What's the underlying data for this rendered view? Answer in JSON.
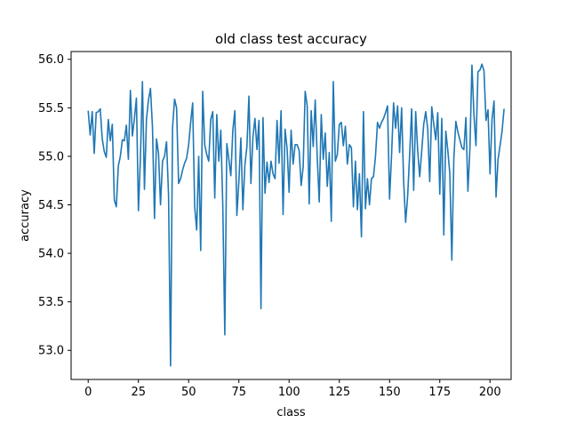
{
  "chart_data": {
    "type": "line",
    "title": "old class test accuracy",
    "xlabel": "class",
    "ylabel": "accuracy",
    "xlim": [
      -8.5,
      210.5
    ],
    "ylim": [
      52.7,
      56.08
    ],
    "grid": false,
    "line_color": "#1f77b4",
    "xticks": [
      0,
      25,
      50,
      75,
      100,
      125,
      150,
      175,
      200
    ],
    "xtick_labels": [
      "0",
      "25",
      "50",
      "75",
      "100",
      "125",
      "150",
      "175",
      "200"
    ],
    "yticks": [
      53.0,
      53.5,
      54.0,
      54.5,
      55.0,
      55.5,
      56.0
    ],
    "ytick_labels": [
      "53.0",
      "53.5",
      "54.0",
      "54.5",
      "55.0",
      "55.5",
      "56.0"
    ],
    "series": [
      {
        "values": [
          55.47,
          55.22,
          55.46,
          55.03,
          55.45,
          55.46,
          55.49,
          55.18,
          55.05,
          54.99,
          55.38,
          55.16,
          55.33,
          54.55,
          54.48,
          54.9,
          55.0,
          55.17,
          55.16,
          55.32,
          54.97,
          55.68,
          55.21,
          55.39,
          55.6,
          54.44,
          54.98,
          55.77,
          54.66,
          55.38,
          55.58,
          55.7,
          55.3,
          54.36,
          55.18,
          55.03,
          54.5,
          54.95,
          55.0,
          55.15,
          54.6,
          52.84,
          55.3,
          55.59,
          55.5,
          54.72,
          54.77,
          54.86,
          54.93,
          54.98,
          55.12,
          55.35,
          55.55,
          54.48,
          54.24,
          55.0,
          54.03,
          55.67,
          55.12,
          55.02,
          54.95,
          55.38,
          55.46,
          54.57,
          55.43,
          54.95,
          55.27,
          54.49,
          53.16,
          55.13,
          54.97,
          54.8,
          55.27,
          55.47,
          54.39,
          54.74,
          55.19,
          54.45,
          54.91,
          55.1,
          55.62,
          54.72,
          55.2,
          55.39,
          55.07,
          55.37,
          53.43,
          55.4,
          54.62,
          54.94,
          54.73,
          54.95,
          54.82,
          54.77,
          55.37,
          54.93,
          55.47,
          54.4,
          55.28,
          55.08,
          54.63,
          55.27,
          54.92,
          55.12,
          55.12,
          55.06,
          54.7,
          54.89,
          55.67,
          55.52,
          54.51,
          55.47,
          55.1,
          55.58,
          54.99,
          54.53,
          55.43,
          54.97,
          55.24,
          54.69,
          55.04,
          54.33,
          55.77,
          54.95,
          55.02,
          55.33,
          55.35,
          55.11,
          55.31,
          54.92,
          55.12,
          55.09,
          54.48,
          54.95,
          54.45,
          54.82,
          54.17,
          55.46,
          54.46,
          54.77,
          54.5,
          54.77,
          54.79,
          55.0,
          55.35,
          55.29,
          55.35,
          55.39,
          55.45,
          55.52,
          54.56,
          55.01,
          55.55,
          55.29,
          55.52,
          55.04,
          55.5,
          54.75,
          54.32,
          54.59,
          55.02,
          55.49,
          54.65,
          55.46,
          55.06,
          54.79,
          55.05,
          55.33,
          55.46,
          55.28,
          54.74,
          55.51,
          55.33,
          55.17,
          55.45,
          54.61,
          55.39,
          54.19,
          55.26,
          55.06,
          54.82,
          53.93,
          54.98,
          55.36,
          55.25,
          55.17,
          55.09,
          55.07,
          55.4,
          54.64,
          55.08,
          55.94,
          55.43,
          55.11,
          55.87,
          55.89,
          55.95,
          55.88,
          55.37,
          55.48,
          54.82,
          55.38,
          55.57,
          54.58,
          54.97,
          55.11,
          55.26,
          55.49
        ]
      }
    ]
  }
}
